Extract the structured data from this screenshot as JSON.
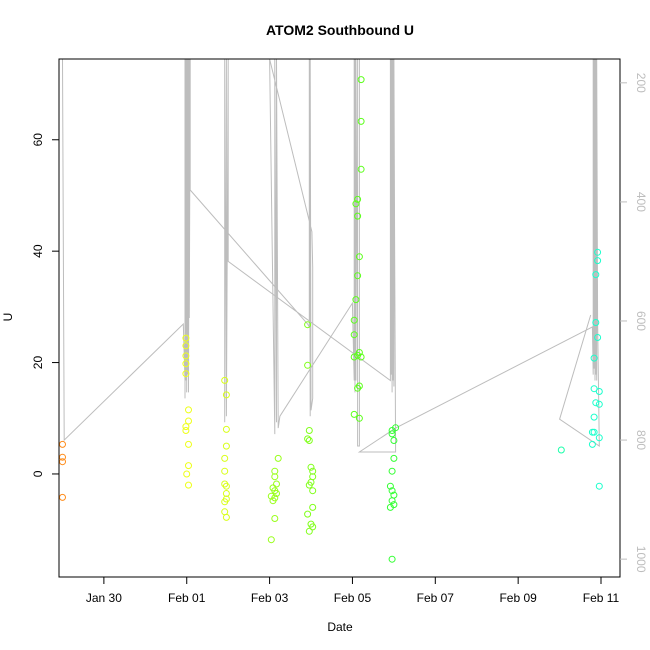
{
  "chart_data": {
    "type": "scatter",
    "title": "ATOM2 Southbound U",
    "xlabel": "Date",
    "ylabel": "U",
    "x_axis": {
      "type": "date",
      "range": [
        "2014-01-28T22:00",
        "2014-02-11T11:00"
      ],
      "ticks": [
        {
          "value": "2014-01-30",
          "label": "Jan 30"
        },
        {
          "value": "2014-02-01",
          "label": "Feb 01"
        },
        {
          "value": "2014-02-03",
          "label": "Feb 03"
        },
        {
          "value": "2014-02-05",
          "label": "Feb 05"
        },
        {
          "value": "2014-02-07",
          "label": "Feb 07"
        },
        {
          "value": "2014-02-09",
          "label": "Feb 09"
        },
        {
          "value": "2014-02-11",
          "label": "Feb 11"
        }
      ]
    },
    "y_left": {
      "range": [
        -18.5,
        74.5
      ],
      "ticks": [
        0,
        20,
        40,
        60
      ]
    },
    "y_right": {
      "range": [
        1030,
        160
      ],
      "reversed": true,
      "color": "#bdbdbd",
      "ticks": [
        200,
        400,
        600,
        800,
        1000
      ]
    },
    "grid": false,
    "legend": "none",
    "marker": "open-circle",
    "points": [
      {
        "x": "2014-01-29T00:00",
        "y": 5.3,
        "color": "#ff8c1a"
      },
      {
        "x": "2014-01-29T00:00",
        "y": 3.0,
        "color": "#ff8c1a"
      },
      {
        "x": "2014-01-29T00:00",
        "y": 2.2,
        "color": "#ff8c1a"
      },
      {
        "x": "2014-01-29T00:00",
        "y": -4.2,
        "color": "#ff8c1a"
      },
      {
        "x": "2014-01-31T23:30",
        "y": 24.4,
        "color": "#eeff1a"
      },
      {
        "x": "2014-01-31T23:30",
        "y": 23.0,
        "color": "#eeff1a"
      },
      {
        "x": "2014-01-31T23:30",
        "y": 21.2,
        "color": "#eeff1a"
      },
      {
        "x": "2014-01-31T23:30",
        "y": 19.8,
        "color": "#eeff1a"
      },
      {
        "x": "2014-01-31T23:30",
        "y": 18.0,
        "color": "#eeff1a"
      },
      {
        "x": "2014-01-31T23:30",
        "y": 8.5,
        "color": "#eeff1a"
      },
      {
        "x": "2014-01-31T23:30",
        "y": 7.8,
        "color": "#eeff1a"
      },
      {
        "x": "2014-02-01T01:00",
        "y": 11.5,
        "color": "#eeff1a"
      },
      {
        "x": "2014-02-01T01:00",
        "y": 9.5,
        "color": "#eeff1a"
      },
      {
        "x": "2014-02-01T01:00",
        "y": 5.3,
        "color": "#eeff1a"
      },
      {
        "x": "2014-02-01T01:00",
        "y": 1.5,
        "color": "#eeff1a"
      },
      {
        "x": "2014-02-01T00:00",
        "y": 0.0,
        "color": "#eeff1a"
      },
      {
        "x": "2014-02-01T01:00",
        "y": -2.0,
        "color": "#eeff1a"
      },
      {
        "x": "2014-02-01T22:00",
        "y": 16.8,
        "color": "#d9ff1a"
      },
      {
        "x": "2014-02-01T23:00",
        "y": 14.2,
        "color": "#d9ff1a"
      },
      {
        "x": "2014-02-01T23:00",
        "y": 8.0,
        "color": "#d9ff1a"
      },
      {
        "x": "2014-02-01T23:00",
        "y": 5.0,
        "color": "#d9ff1a"
      },
      {
        "x": "2014-02-01T22:00",
        "y": 2.8,
        "color": "#d9ff1a"
      },
      {
        "x": "2014-02-01T22:00",
        "y": 0.5,
        "color": "#d9ff1a"
      },
      {
        "x": "2014-02-01T22:00",
        "y": -1.8,
        "color": "#d9ff1a"
      },
      {
        "x": "2014-02-01T23:00",
        "y": -2.2,
        "color": "#d9ff1a"
      },
      {
        "x": "2014-02-01T23:00",
        "y": -3.5,
        "color": "#d9ff1a"
      },
      {
        "x": "2014-02-01T22:00",
        "y": -5.0,
        "color": "#d9ff1a"
      },
      {
        "x": "2014-02-01T23:00",
        "y": -4.5,
        "color": "#d9ff1a"
      },
      {
        "x": "2014-02-01T22:00",
        "y": -6.8,
        "color": "#d9ff1a"
      },
      {
        "x": "2014-02-01T23:00",
        "y": -7.8,
        "color": "#d9ff1a"
      },
      {
        "x": "2014-02-03T05:00",
        "y": 2.8,
        "color": "#99ff1a"
      },
      {
        "x": "2014-02-03T03:00",
        "y": 0.5,
        "color": "#99ff1a"
      },
      {
        "x": "2014-02-03T03:00",
        "y": -0.5,
        "color": "#99ff1a"
      },
      {
        "x": "2014-02-03T04:00",
        "y": -1.8,
        "color": "#99ff1a"
      },
      {
        "x": "2014-02-03T02:00",
        "y": -2.5,
        "color": "#99ff1a"
      },
      {
        "x": "2014-02-03T03:00",
        "y": -3.0,
        "color": "#99ff1a"
      },
      {
        "x": "2014-02-03T04:00",
        "y": -3.5,
        "color": "#99ff1a"
      },
      {
        "x": "2014-02-03T01:00",
        "y": -4.0,
        "color": "#99ff1a"
      },
      {
        "x": "2014-02-03T03:00",
        "y": -4.3,
        "color": "#99ff1a"
      },
      {
        "x": "2014-02-03T02:00",
        "y": -4.8,
        "color": "#99ff1a"
      },
      {
        "x": "2014-02-03T03:00",
        "y": -8.0,
        "color": "#99ff1a"
      },
      {
        "x": "2014-02-03T01:00",
        "y": -11.8,
        "color": "#99ff1a"
      },
      {
        "x": "2014-02-03T22:00",
        "y": 26.8,
        "color": "#80ff1a"
      },
      {
        "x": "2014-02-03T22:00",
        "y": 19.5,
        "color": "#80ff1a"
      },
      {
        "x": "2014-02-03T23:00",
        "y": 7.8,
        "color": "#80ff1a"
      },
      {
        "x": "2014-02-03T22:00",
        "y": 6.3,
        "color": "#80ff1a"
      },
      {
        "x": "2014-02-03T23:00",
        "y": 6.0,
        "color": "#80ff1a"
      },
      {
        "x": "2014-02-04T00:00",
        "y": 1.2,
        "color": "#80ff1a"
      },
      {
        "x": "2014-02-04T01:00",
        "y": 0.5,
        "color": "#80ff1a"
      },
      {
        "x": "2014-02-04T01:00",
        "y": -0.5,
        "color": "#80ff1a"
      },
      {
        "x": "2014-02-04T00:00",
        "y": -1.5,
        "color": "#80ff1a"
      },
      {
        "x": "2014-02-03T23:00",
        "y": -2.0,
        "color": "#80ff1a"
      },
      {
        "x": "2014-02-04T01:00",
        "y": -3.0,
        "color": "#80ff1a"
      },
      {
        "x": "2014-02-04T01:00",
        "y": -6.0,
        "color": "#80ff1a"
      },
      {
        "x": "2014-02-03T22:00",
        "y": -7.2,
        "color": "#80ff1a"
      },
      {
        "x": "2014-02-04T00:00",
        "y": -9.0,
        "color": "#80ff1a"
      },
      {
        "x": "2014-02-04T01:00",
        "y": -9.5,
        "color": "#80ff1a"
      },
      {
        "x": "2014-02-03T23:00",
        "y": -10.3,
        "color": "#80ff1a"
      },
      {
        "x": "2014-02-05T05:00",
        "y": 70.8,
        "color": "#5cff1a"
      },
      {
        "x": "2014-02-05T05:00",
        "y": 63.3,
        "color": "#5cff1a"
      },
      {
        "x": "2014-02-05T05:00",
        "y": 54.7,
        "color": "#5cff1a"
      },
      {
        "x": "2014-02-05T03:00",
        "y": 49.3,
        "color": "#5cff1a"
      },
      {
        "x": "2014-02-05T02:00",
        "y": 48.5,
        "color": "#5cff1a"
      },
      {
        "x": "2014-02-05T03:00",
        "y": 46.3,
        "color": "#5cff1a"
      },
      {
        "x": "2014-02-05T04:00",
        "y": 39.0,
        "color": "#5cff1a"
      },
      {
        "x": "2014-02-05T03:00",
        "y": 35.6,
        "color": "#5cff1a"
      },
      {
        "x": "2014-02-05T02:00",
        "y": 31.3,
        "color": "#5cff1a"
      },
      {
        "x": "2014-02-05T01:00",
        "y": 27.6,
        "color": "#5cff1a"
      },
      {
        "x": "2014-02-05T01:00",
        "y": 25.0,
        "color": "#5cff1a"
      },
      {
        "x": "2014-02-05T04:00",
        "y": 21.8,
        "color": "#5cff1a"
      },
      {
        "x": "2014-02-05T03:00",
        "y": 21.3,
        "color": "#5cff1a"
      },
      {
        "x": "2014-02-05T01:00",
        "y": 21.0,
        "color": "#5cff1a"
      },
      {
        "x": "2014-02-05T05:00",
        "y": 21.0,
        "color": "#5cff1a"
      },
      {
        "x": "2014-02-05T04:00",
        "y": 15.8,
        "color": "#5cff1a"
      },
      {
        "x": "2014-02-05T03:00",
        "y": 15.4,
        "color": "#5cff1a"
      },
      {
        "x": "2014-02-05T01:00",
        "y": 10.7,
        "color": "#5cff1a"
      },
      {
        "x": "2014-02-05T04:00",
        "y": 10.0,
        "color": "#5cff1a"
      },
      {
        "x": "2014-02-06T01:00",
        "y": 8.3,
        "color": "#33ff33"
      },
      {
        "x": "2014-02-05T23:00",
        "y": 7.8,
        "color": "#33ff33"
      },
      {
        "x": "2014-02-05T23:00",
        "y": 7.2,
        "color": "#33ff33"
      },
      {
        "x": "2014-02-06T00:00",
        "y": 6.0,
        "color": "#33ff33"
      },
      {
        "x": "2014-02-06T00:00",
        "y": 2.8,
        "color": "#33ff33"
      },
      {
        "x": "2014-02-05T23:00",
        "y": 0.5,
        "color": "#33ff33"
      },
      {
        "x": "2014-02-05T22:00",
        "y": -2.2,
        "color": "#33ff33"
      },
      {
        "x": "2014-02-05T23:00",
        "y": -3.0,
        "color": "#33ff33"
      },
      {
        "x": "2014-02-06T00:00",
        "y": -3.8,
        "color": "#33ff33"
      },
      {
        "x": "2014-02-05T23:00",
        "y": -4.8,
        "color": "#33ff33"
      },
      {
        "x": "2014-02-06T00:00",
        "y": -5.5,
        "color": "#33ff33"
      },
      {
        "x": "2014-02-05T22:00",
        "y": -6.0,
        "color": "#33ff33"
      },
      {
        "x": "2014-02-05T23:00",
        "y": -15.3,
        "color": "#33ff33"
      },
      {
        "x": "2014-02-10T01:00",
        "y": 4.3,
        "color": "#1affaa"
      },
      {
        "x": "2014-02-10T22:00",
        "y": 39.8,
        "color": "#1affcc"
      },
      {
        "x": "2014-02-10T22:00",
        "y": 38.3,
        "color": "#1affcc"
      },
      {
        "x": "2014-02-10T21:00",
        "y": 35.8,
        "color": "#1affcc"
      },
      {
        "x": "2014-02-10T21:00",
        "y": 27.2,
        "color": "#1affcc"
      },
      {
        "x": "2014-02-10T22:00",
        "y": 24.5,
        "color": "#1affcc"
      },
      {
        "x": "2014-02-10T20:00",
        "y": 20.8,
        "color": "#1affcc"
      },
      {
        "x": "2014-02-10T20:00",
        "y": 15.3,
        "color": "#1affcc"
      },
      {
        "x": "2014-02-10T23:00",
        "y": 14.8,
        "color": "#1affcc"
      },
      {
        "x": "2014-02-10T21:00",
        "y": 12.8,
        "color": "#1affcc"
      },
      {
        "x": "2014-02-10T23:00",
        "y": 12.5,
        "color": "#1affcc"
      },
      {
        "x": "2014-02-10T20:00",
        "y": 10.2,
        "color": "#1affcc"
      },
      {
        "x": "2014-02-10T19:00",
        "y": 7.5,
        "color": "#1affcc"
      },
      {
        "x": "2014-02-10T20:00",
        "y": 7.5,
        "color": "#1affcc"
      },
      {
        "x": "2014-02-10T23:00",
        "y": 6.5,
        "color": "#1affcc"
      },
      {
        "x": "2014-02-10T19:00",
        "y": 5.3,
        "color": "#1affcc"
      },
      {
        "x": "2014-02-10T23:00",
        "y": -2.2,
        "color": "#1affcc"
      }
    ],
    "depth_trace": {
      "axis": "right",
      "color": "#bdbdbd",
      "points": [
        [
          "2014-01-29T00:00",
          160
        ],
        [
          "2014-01-29T01:00",
          800
        ],
        [
          "2014-01-31T22:00",
          605
        ],
        [
          "2014-01-31T23:00",
          700
        ],
        [
          "2014-01-31T23:00",
          160
        ],
        [
          "2014-01-31T23:00",
          730
        ],
        [
          "2014-01-31T23:30",
          160
        ],
        [
          "2014-01-31T23:30",
          700
        ],
        [
          "2014-02-01T00:00",
          160
        ],
        [
          "2014-02-01T00:00",
          720
        ],
        [
          "2014-02-01T00:30",
          160
        ],
        [
          "2014-02-01T00:30",
          690
        ],
        [
          "2014-02-01T01:00",
          160
        ],
        [
          "2014-02-01T01:00",
          720
        ],
        [
          "2014-02-01T01:30",
          160
        ],
        [
          "2014-02-01T01:30",
          595
        ],
        [
          "2014-02-01T02:00",
          160
        ],
        [
          "2014-02-01T02:00",
          380
        ],
        [
          "2014-02-03T22:00",
          605
        ],
        [
          "2014-02-03T23:00",
          610
        ],
        [
          "2014-02-03T23:00",
          160
        ],
        [
          "2014-02-03T23:30",
          760
        ],
        [
          "2014-02-03T23:30",
          160
        ],
        [
          "2014-02-04T00:00",
          750
        ],
        [
          "2014-02-04T01:00",
          730
        ],
        [
          "2014-02-04T01:00",
          510
        ],
        [
          "2014-02-04T00:30",
          450
        ],
        [
          "2014-02-03T00:00",
          160
        ],
        [
          "2014-02-03T03:00",
          790
        ],
        [
          "2014-02-03T03:00",
          160
        ],
        [
          "2014-02-03T04:00",
          770
        ],
        [
          "2014-02-03T04:00",
          160
        ],
        [
          "2014-02-03T05:00",
          780
        ],
        [
          "2014-02-03T06:00",
          760
        ],
        [
          "2014-02-05T00:00",
          570
        ],
        [
          "2014-02-05T01:00",
          700
        ],
        [
          "2014-02-05T01:00",
          160
        ],
        [
          "2014-02-05T01:30",
          720
        ],
        [
          "2014-02-05T01:30",
          160
        ],
        [
          "2014-02-05T02:00",
          700
        ],
        [
          "2014-02-05T02:00",
          160
        ],
        [
          "2014-02-05T03:00",
          680
        ],
        [
          "2014-02-05T03:00",
          160
        ],
        [
          "2014-02-05T03:00",
          810
        ],
        [
          "2014-02-05T04:00",
          810
        ],
        [
          "2014-02-05T04:00",
          160
        ],
        [
          "2014-02-01T22:00",
          160
        ],
        [
          "2014-02-01T22:00",
          770
        ],
        [
          "2014-02-01T23:00",
          160
        ],
        [
          "2014-02-01T23:00",
          760
        ],
        [
          "2014-02-02T00:00",
          160
        ],
        [
          "2014-02-02T00:00",
          500
        ],
        [
          "2014-02-05T22:00",
          700
        ],
        [
          "2014-02-05T22:00",
          160
        ],
        [
          "2014-02-05T22:30",
          690
        ],
        [
          "2014-02-05T22:30",
          160
        ],
        [
          "2014-02-05T23:00",
          720
        ],
        [
          "2014-02-05T23:00",
          160
        ],
        [
          "2014-02-05T23:30",
          700
        ],
        [
          "2014-02-05T23:30",
          160
        ],
        [
          "2014-02-06T00:00",
          710
        ],
        [
          "2014-02-06T00:00",
          160
        ],
        [
          "2014-02-06T00:30",
          500
        ],
        [
          "2014-02-06T01:00",
          820
        ],
        [
          "2014-02-05T04:00",
          820
        ],
        [
          "2014-02-06T01:00",
          780
        ],
        [
          "2014-02-10T19:00",
          610
        ],
        [
          "2014-02-10T19:30",
          690
        ],
        [
          "2014-02-10T19:30",
          160
        ],
        [
          "2014-02-10T20:00",
          680
        ],
        [
          "2014-02-10T20:00",
          160
        ],
        [
          "2014-02-10T20:30",
          700
        ],
        [
          "2014-02-10T20:30",
          160
        ],
        [
          "2014-02-10T21:00",
          690
        ],
        [
          "2014-02-10T21:00",
          160
        ],
        [
          "2014-02-10T21:30",
          700
        ],
        [
          "2014-02-10T21:30",
          160
        ],
        [
          "2014-02-10T22:00",
          600
        ],
        [
          "2014-02-10T23:00",
          810
        ],
        [
          "2014-02-10T00:00",
          765
        ],
        [
          "2014-02-10T18:00",
          590
        ]
      ]
    }
  }
}
